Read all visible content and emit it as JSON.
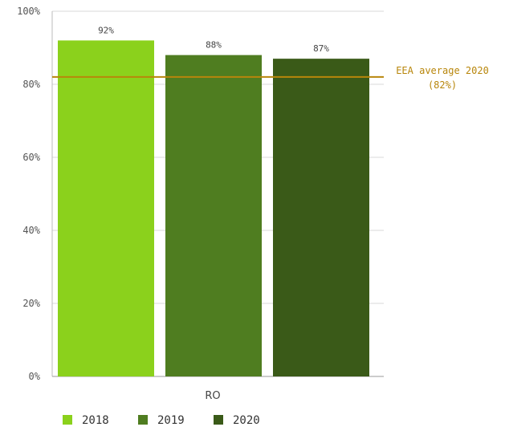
{
  "chart_data": {
    "type": "bar",
    "categories": [
      "RO"
    ],
    "series": [
      {
        "name": "2018",
        "values": [
          92
        ],
        "label": "92%",
        "color": "#8bd11c"
      },
      {
        "name": "2019",
        "values": [
          88
        ],
        "label": "88%",
        "color": "#4f7d20"
      },
      {
        "name": "2020",
        "values": [
          87
        ],
        "label": "87%",
        "color": "#3a5a18"
      }
    ],
    "ylim": [
      0,
      100
    ],
    "yticks": [
      0,
      20,
      40,
      60,
      80,
      100
    ],
    "ytick_labels": [
      "0%",
      "20%",
      "40%",
      "60%",
      "80%",
      "100%"
    ],
    "reference_line": {
      "value": 82,
      "label_line1": "EEA average 2020",
      "label_line2": "(82%)",
      "color": "#b8860b"
    },
    "grid": true,
    "legend_position": "bottom-left"
  }
}
